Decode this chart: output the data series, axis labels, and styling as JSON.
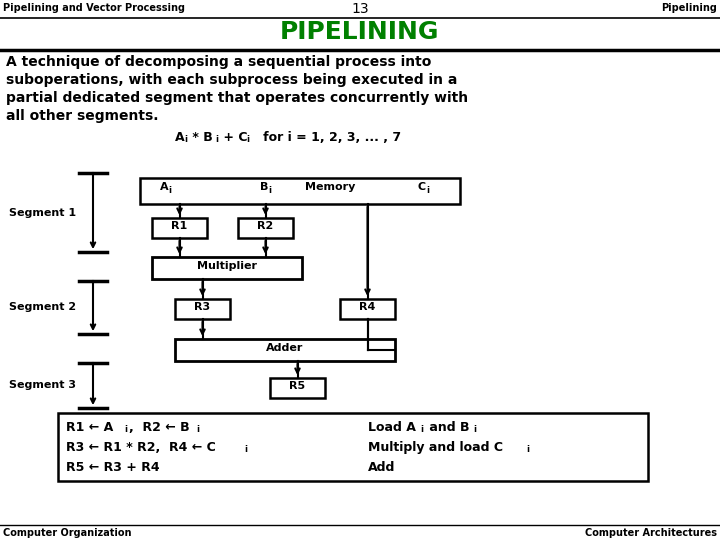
{
  "title_left": "Pipelining and Vector Processing",
  "title_center": "13",
  "title_right": "Pipelining",
  "main_title": "PIPELINING",
  "main_title_color": "#008000",
  "body_lines": [
    "A technique of decomposing a sequential process into",
    "suboperations, with each subprocess being executed in a",
    "partial dedicated segment that operates concurrently with",
    "all other segments."
  ],
  "footer_left": "Computer Organization",
  "footer_right": "Computer Architectures",
  "bg_color": "#ffffff",
  "segment1_label": "Segment 1",
  "segment2_label": "Segment 2",
  "segment3_label": "Segment 3"
}
